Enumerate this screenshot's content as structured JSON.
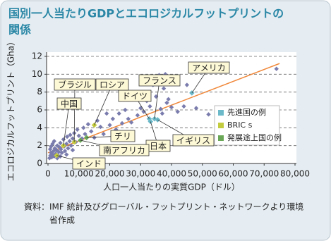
{
  "chart_data": {
    "type": "scatter",
    "title": [
      "国別一人当たりGDPとエコロジカルフットプリントの",
      "関係"
    ],
    "x_label": "人口一人当たりの実質GDP（ドル）",
    "y_label": "エコロジカルフットプリント（Gha）",
    "note": [
      "資料：IMF 統計及びグローバル・フットプリント・ネットワークより環境",
      "省作成"
    ],
    "xlim": [
      0,
      80000
    ],
    "ylim": [
      0,
      12
    ],
    "xticks": [
      0,
      {
        "value": 10000,
        "label": "10,000"
      },
      {
        "value": 20000,
        "label": "20,000"
      },
      {
        "value": 30000,
        "label": "30,000"
      },
      {
        "value": 40000,
        "label": "40,000"
      },
      {
        "value": 50000,
        "label": "50,000"
      },
      {
        "value": 60000,
        "label": "60,000"
      },
      {
        "value": 70000,
        "label": "70,000"
      },
      {
        "value": 80000,
        "label": "80,000"
      }
    ],
    "yticks": [
      0,
      2,
      4,
      6,
      8,
      10,
      12
    ],
    "grid": true,
    "legend": "right",
    "trendline": {
      "color": "#f0883a",
      "x": [
        0,
        75000
      ],
      "y": [
        1.2,
        11.2
      ]
    },
    "series": [
      {
        "color": "#7a7cad",
        "x": [
          500,
          800,
          1000,
          1200,
          1500,
          1800,
          2000,
          2200,
          2500,
          2800,
          3000,
          3200,
          3500,
          3800,
          4000,
          4200,
          4500,
          5000,
          5200,
          5500,
          6000,
          6200,
          6500,
          7000,
          7200,
          7500,
          8000,
          8500,
          9000,
          9500,
          10000,
          11000,
          11500,
          12000,
          13000,
          14000,
          15000,
          16000,
          17000,
          18000,
          19000,
          20000,
          21000,
          22000,
          23000,
          24000,
          25000,
          26000,
          27000,
          28000,
          29000,
          30000,
          31000,
          32000,
          33000,
          34000,
          35000,
          36000,
          36500,
          37000,
          37500,
          38000,
          38500,
          39000,
          40000,
          42000,
          44000,
          45000,
          48000,
          52000,
          74000,
          1000,
          2000,
          3000,
          4000,
          6000,
          700,
          1500,
          8000
        ],
        "y": [
          0.6,
          0.9,
          1.2,
          0.7,
          1.0,
          1.4,
          0.8,
          1.7,
          1.1,
          1.5,
          2.0,
          0.9,
          1.3,
          1.8,
          2.3,
          1.6,
          1.2,
          2.7,
          1.9,
          1.4,
          2.2,
          3.0,
          1.7,
          2.5,
          3.2,
          2.0,
          2.8,
          3.4,
          2.4,
          3.8,
          3.1,
          2.8,
          4.0,
          3.3,
          4.4,
          3.6,
          2.9,
          4.8,
          4.1,
          3.3,
          5.6,
          4.3,
          5.0,
          3.8,
          5.6,
          4.5,
          6.0,
          5.0,
          4.6,
          7.4,
          5.4,
          6.2,
          5.8,
          7.0,
          6.4,
          8.8,
          7.5,
          9.9,
          6.1,
          5.6,
          8.4,
          10.0,
          6.8,
          7.2,
          6.3,
          5.8,
          6.4,
          8.8,
          6.2,
          5.5,
          10.6,
          1.9,
          2.5,
          0.6,
          0.8,
          1.0,
          1.6,
          2.2,
          1.5
        ]
      },
      {
        "name": "先進国の例",
        "color": "#6cb9c9",
        "labels": [
          "アメリカ",
          "フランス",
          "ドイツ",
          "日本",
          "イギリス"
        ],
        "x": [
          46600,
          34500,
          32800,
          33200,
          35500
        ],
        "y": [
          7.9,
          5.0,
          5.0,
          4.7,
          4.9
        ]
      },
      {
        "name": "BRIC s",
        "color": "#c3cb3e",
        "labels": [
          "ブラジル",
          "ロシア",
          "中国",
          "インド"
        ],
        "x": [
          8500,
          15000,
          5000,
          2800
        ],
        "y": [
          2.4,
          4.3,
          2.0,
          0.9
        ]
      },
      {
        "name": "発展途上国の例",
        "color": "#6aa857",
        "labels": [
          "チリ",
          "南アフリカ"
        ],
        "x": [
          12500,
          10500
        ],
        "y": [
          2.9,
          2.6
        ]
      }
    ]
  }
}
